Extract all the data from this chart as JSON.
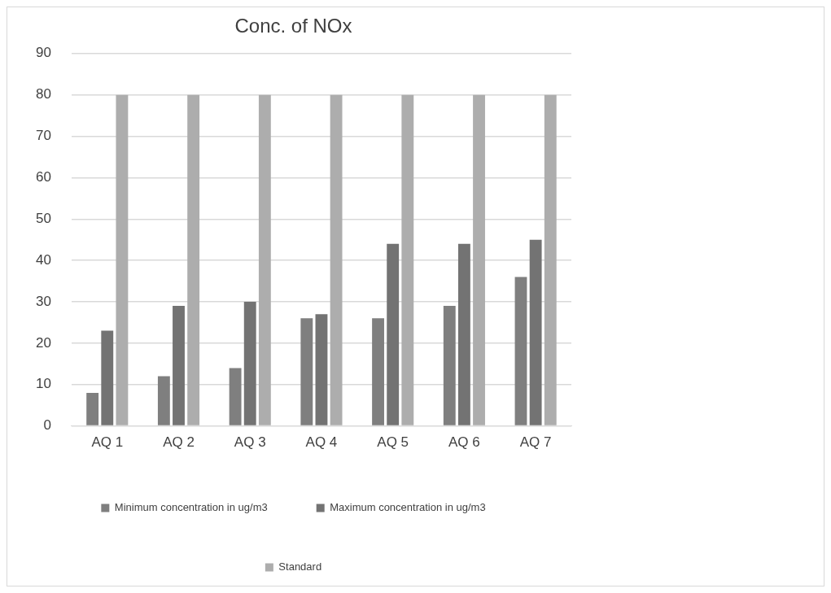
{
  "chart_data": {
    "type": "bar",
    "title": "Conc. of NOx",
    "categories": [
      "AQ 1",
      "AQ 2",
      "AQ 3",
      "AQ 4",
      "AQ 5",
      "AQ 6",
      "AQ 7"
    ],
    "series": [
      {
        "name": "Minimum concentration in ug/m3",
        "color": "#7f7f7f",
        "values": [
          8,
          12,
          14,
          26,
          26,
          29,
          36
        ]
      },
      {
        "name": "Maximum concentration in ug/m3",
        "color": "#737373",
        "values": [
          23,
          29,
          30,
          27,
          44,
          44,
          45
        ]
      },
      {
        "name": "Standard",
        "color": "#adadad",
        "values": [
          80,
          80,
          80,
          80,
          80,
          80,
          80
        ]
      }
    ],
    "ylim": [
      0,
      90
    ],
    "yticks": [
      0,
      10,
      20,
      30,
      40,
      50,
      60,
      70,
      80,
      90
    ],
    "grid": "y",
    "legend": "bottom"
  }
}
